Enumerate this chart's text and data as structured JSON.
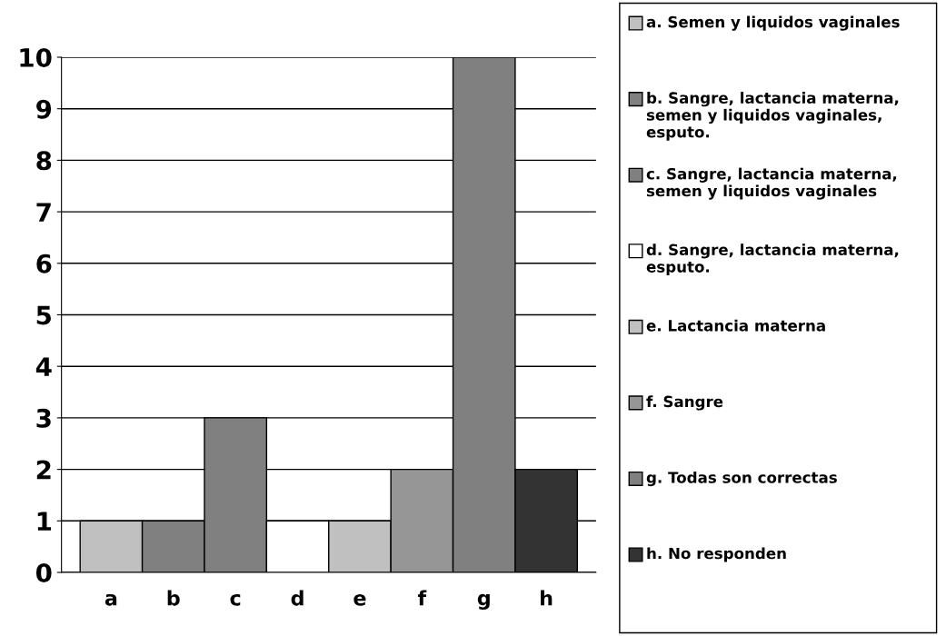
{
  "chart_data": {
    "type": "bar",
    "categories": [
      "a",
      "b",
      "c",
      "d",
      "e",
      "f",
      "g",
      "h"
    ],
    "series": [
      {
        "name": "a. Semen y liquidos vaginales",
        "color": "#c0c0c0",
        "values": [
          1,
          null,
          null,
          null,
          null,
          null,
          null,
          null
        ]
      },
      {
        "name": "b. Sangre, lactancia materna, semen y liquidos vaginales, esputo.",
        "color": "#808080",
        "values": [
          null,
          1,
          null,
          null,
          null,
          null,
          null,
          null
        ]
      },
      {
        "name": "c. Sangre, lactancia materna, semen y liquidos vaginales",
        "color": "#808080",
        "values": [
          null,
          null,
          3,
          null,
          null,
          null,
          null,
          null
        ]
      },
      {
        "name": "d. Sangre, lactancia materna, esputo.",
        "color": "#ffffff",
        "values": [
          null,
          null,
          null,
          1,
          null,
          null,
          null,
          null
        ]
      },
      {
        "name": "e. Lactancia materna",
        "color": "#c0c0c0",
        "values": [
          null,
          null,
          null,
          null,
          1,
          null,
          null,
          null
        ]
      },
      {
        "name": "f. Sangre",
        "color": "#969696",
        "values": [
          null,
          null,
          null,
          null,
          null,
          2,
          null,
          null
        ]
      },
      {
        "name": "g. Todas son correctas",
        "color": "#808080",
        "values": [
          null,
          null,
          null,
          null,
          null,
          null,
          10,
          null
        ]
      },
      {
        "name": "h. No responden",
        "color": "#333333",
        "values": [
          null,
          null,
          null,
          null,
          null,
          null,
          null,
          2
        ]
      }
    ],
    "ylim": [
      0,
      10
    ],
    "yticks": [
      0,
      1,
      2,
      3,
      4,
      5,
      6,
      7,
      8,
      9,
      10
    ],
    "grid": "y",
    "legend": "right"
  }
}
